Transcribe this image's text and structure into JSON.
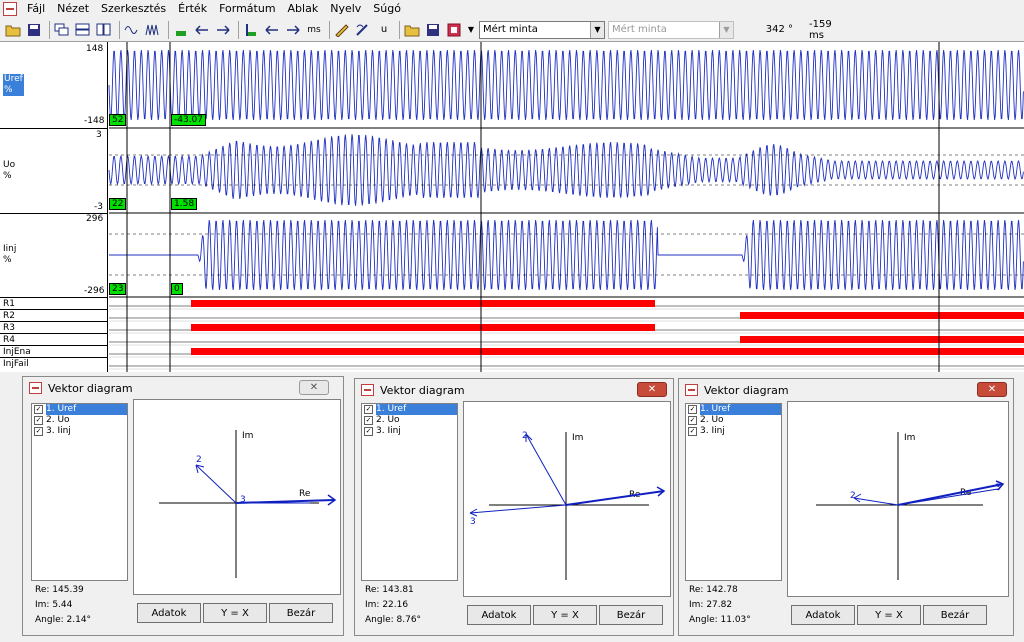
{
  "menu": [
    "Fájl",
    "Nézet",
    "Szerkesztés",
    "Érték",
    "Formátum",
    "Ablak",
    "Nyelv",
    "Súgó"
  ],
  "toolbar": {
    "ms_label": "ms",
    "u_label": "u",
    "combo1": "Mért minta",
    "combo2": "Mért minta",
    "angle": "342 °",
    "time": "-159 ms"
  },
  "channels": [
    {
      "name": "Uref",
      "unit": "%",
      "max": "148",
      "min": "-148",
      "val_a": "52",
      "val_b": "-43.07"
    },
    {
      "name": "Uo",
      "unit": "%",
      "max": "3",
      "min": "-3",
      "val_a": "22",
      "val_b": "1.58"
    },
    {
      "name": "Iinj",
      "unit": "%",
      "max": "296",
      "min": "-296",
      "val_a": "23",
      "val_b": "0"
    }
  ],
  "digital": [
    "R1",
    "R2",
    "R3",
    "R4",
    "InjEna",
    "InjFail"
  ],
  "colors": {
    "wave": "#2030c0",
    "digital": "#ff0000",
    "value_box": "#00e000",
    "selection": "#3a7fd9"
  },
  "dialogs": [
    {
      "title": "Vektor diagram",
      "items": [
        "1. Uref",
        "2. Uo",
        "3. Iinj"
      ],
      "re": "Re: 145.39",
      "im": "Im: 5.44",
      "angle": "Angle: 2.14°",
      "axis_im": "Im",
      "axis_re": "Re",
      "btn_data": "Adatok",
      "btn_yx": "Y = X",
      "btn_close": "Bezár",
      "vec_labels": [
        "2",
        "3"
      ]
    },
    {
      "title": "Vektor diagram",
      "items": [
        "1. Uref",
        "2. Uo",
        "3. Iinj"
      ],
      "re": "Re: 143.81",
      "im": "Im: 22.16",
      "angle": "Angle: 8.76°",
      "axis_im": "Im",
      "axis_re": "Re",
      "btn_data": "Adatok",
      "btn_yx": "Y = X",
      "btn_close": "Bezár",
      "vec_labels": [
        "2",
        "3"
      ]
    },
    {
      "title": "Vektor diagram",
      "items": [
        "1. Uref",
        "2. Uo",
        "3. Iinj"
      ],
      "re": "Re: 142.78",
      "im": "Im: 27.82",
      "angle": "Angle: 11.03°",
      "axis_im": "Im",
      "axis_re": "Re",
      "btn_data": "Adatok",
      "btn_yx": "Y = X",
      "btn_close": "Bezár",
      "vec_labels": [
        "2",
        "3"
      ]
    }
  ]
}
